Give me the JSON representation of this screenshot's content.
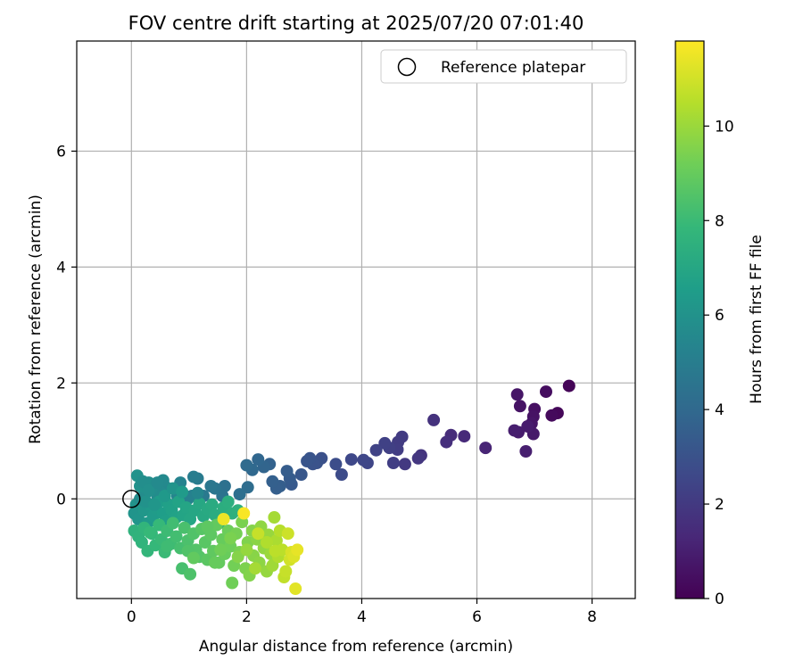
{
  "chart_data": {
    "type": "scatter",
    "title": "FOV centre drift starting at 2025/07/20 07:01:40",
    "xlabel": "Angular distance from reference (arcmin)",
    "ylabel": "Rotation from reference (arcmin)",
    "xlim": [
      -0.95,
      8.75
    ],
    "ylim": [
      -1.72,
      7.9
    ],
    "xticks": [
      0,
      2,
      4,
      6,
      8
    ],
    "yticks": [
      0,
      2,
      4,
      6
    ],
    "grid": true,
    "legend": {
      "position": "top-right",
      "entries": [
        "Reference platepar"
      ]
    },
    "reference_point": {
      "x": 0,
      "y": 0,
      "label": "Reference platepar"
    },
    "colorbar": {
      "label": "Hours from first FF file",
      "range": [
        0,
        11.8
      ],
      "ticks": [
        0,
        2,
        4,
        6,
        8,
        10
      ],
      "colormap": "viridis"
    },
    "colormap_stops": [
      "#440154",
      "#482878",
      "#3e4989",
      "#31688e",
      "#26828e",
      "#1f9e89",
      "#35b779",
      "#6ece58",
      "#b5de2b",
      "#fde725"
    ],
    "series": [
      {
        "color_by": "hours",
        "points": [
          [
            7.6,
            1.95,
            0.1
          ],
          [
            7.4,
            1.48,
            0.2
          ],
          [
            7.3,
            1.44,
            0.3
          ],
          [
            7.2,
            1.85,
            0.4
          ],
          [
            7.0,
            1.55,
            0.5
          ],
          [
            6.98,
            1.42,
            0.6
          ],
          [
            6.95,
            1.3,
            0.7
          ],
          [
            6.98,
            1.12,
            0.8
          ],
          [
            6.88,
            1.25,
            0.9
          ],
          [
            6.85,
            0.82,
            1.0
          ],
          [
            6.75,
            1.6,
            0.6
          ],
          [
            6.7,
            1.8,
            0.7
          ],
          [
            6.72,
            1.15,
            0.9
          ],
          [
            6.65,
            1.18,
            1.0
          ],
          [
            6.15,
            0.88,
            1.2
          ],
          [
            5.78,
            1.08,
            1.4
          ],
          [
            5.55,
            1.1,
            1.5
          ],
          [
            5.47,
            0.98,
            1.6
          ],
          [
            5.25,
            1.36,
            1.7
          ],
          [
            5.03,
            0.75,
            1.8
          ],
          [
            4.98,
            0.7,
            1.9
          ],
          [
            4.75,
            0.6,
            2.0
          ],
          [
            4.7,
            1.07,
            2.05
          ],
          [
            4.63,
            0.98,
            2.1
          ],
          [
            4.62,
            0.85,
            2.15
          ],
          [
            4.55,
            0.62,
            2.2
          ],
          [
            4.48,
            0.88,
            2.25
          ],
          [
            4.4,
            0.96,
            2.3
          ],
          [
            4.25,
            0.84,
            2.4
          ],
          [
            4.1,
            0.62,
            2.5
          ],
          [
            4.03,
            0.67,
            2.55
          ],
          [
            3.82,
            0.68,
            2.6
          ],
          [
            3.65,
            0.42,
            2.7
          ],
          [
            3.55,
            0.6,
            2.8
          ],
          [
            3.3,
            0.7,
            2.9
          ],
          [
            3.22,
            0.62,
            3.0
          ],
          [
            3.15,
            0.6,
            3.05
          ],
          [
            3.1,
            0.7,
            3.1
          ],
          [
            3.05,
            0.65,
            3.15
          ],
          [
            2.95,
            0.42,
            3.2
          ],
          [
            2.78,
            0.25,
            3.3
          ],
          [
            2.75,
            0.35,
            3.4
          ],
          [
            2.7,
            0.48,
            3.45
          ],
          [
            2.58,
            0.22,
            3.5
          ],
          [
            2.52,
            0.18,
            3.55
          ],
          [
            2.45,
            0.3,
            3.6
          ],
          [
            2.4,
            0.6,
            3.7
          ],
          [
            2.3,
            0.55,
            3.8
          ],
          [
            2.2,
            0.68,
            3.9
          ],
          [
            2.1,
            0.5,
            4.0
          ],
          [
            2.0,
            0.58,
            4.1
          ],
          [
            2.02,
            0.2,
            4.2
          ],
          [
            1.88,
            0.08,
            4.3
          ],
          [
            1.62,
            0.22,
            4.4
          ],
          [
            1.58,
            0.05,
            4.5
          ],
          [
            1.45,
            0.18,
            4.6
          ],
          [
            1.38,
            0.22,
            4.7
          ],
          [
            1.25,
            0.05,
            4.8
          ],
          [
            1.15,
            0.35,
            4.9
          ],
          [
            1.08,
            0.38,
            5.0
          ],
          [
            1.05,
            0.05,
            5.1
          ],
          [
            0.98,
            0.0,
            5.2
          ],
          [
            0.85,
            0.28,
            5.3
          ],
          [
            0.8,
            0.05,
            5.4
          ],
          [
            0.6,
            0.2,
            5.5
          ],
          [
            0.55,
            0.32,
            5.55
          ],
          [
            0.5,
            0.12,
            5.6
          ],
          [
            0.45,
            0.05,
            5.65
          ],
          [
            0.4,
            0.25,
            5.7
          ],
          [
            0.35,
            0.15,
            5.75
          ],
          [
            0.3,
            0.28,
            5.8
          ],
          [
            0.25,
            0.1,
            5.85
          ],
          [
            0.2,
            0.05,
            5.9
          ],
          [
            0.15,
            0.22,
            5.95
          ],
          [
            0.1,
            0.4,
            6.0
          ],
          [
            0.08,
            -0.1,
            6.05
          ],
          [
            0.05,
            -0.25,
            6.1
          ],
          [
            0.12,
            -0.35,
            6.15
          ],
          [
            0.18,
            -0.05,
            6.2
          ],
          [
            0.22,
            -0.2,
            6.25
          ],
          [
            0.28,
            -0.42,
            6.3
          ],
          [
            0.32,
            -0.1,
            6.35
          ],
          [
            0.38,
            -0.3,
            6.4
          ],
          [
            0.42,
            -0.15,
            6.45
          ],
          [
            0.48,
            -0.05,
            6.5
          ],
          [
            0.55,
            -0.25,
            6.55
          ],
          [
            0.6,
            -0.38,
            6.6
          ],
          [
            0.65,
            -0.1,
            6.65
          ],
          [
            0.7,
            -0.2,
            6.7
          ],
          [
            0.78,
            -0.32,
            6.75
          ],
          [
            0.82,
            -0.05,
            6.8
          ],
          [
            0.9,
            -0.28,
            6.85
          ],
          [
            0.95,
            -0.15,
            6.9
          ],
          [
            1.02,
            -0.35,
            6.95
          ],
          [
            1.1,
            -0.2,
            7.0
          ],
          [
            1.18,
            -0.08,
            7.05
          ],
          [
            1.25,
            -0.3,
            7.1
          ],
          [
            1.32,
            -0.18,
            7.15
          ],
          [
            1.4,
            -0.1,
            7.2
          ],
          [
            1.45,
            -0.28,
            7.25
          ],
          [
            1.52,
            -0.42,
            7.3
          ],
          [
            1.6,
            -0.15,
            7.35
          ],
          [
            1.68,
            -0.05,
            7.4
          ],
          [
            1.75,
            -0.25,
            7.45
          ],
          [
            1.85,
            -0.2,
            7.5
          ],
          [
            0.05,
            -0.55,
            7.55
          ],
          [
            0.12,
            -0.65,
            7.6
          ],
          [
            0.18,
            -0.75,
            7.65
          ],
          [
            0.22,
            -0.5,
            7.7
          ],
          [
            0.28,
            -0.9,
            7.75
          ],
          [
            0.35,
            -0.6,
            7.8
          ],
          [
            0.42,
            -0.8,
            7.85
          ],
          [
            0.48,
            -0.45,
            7.9
          ],
          [
            0.52,
            -0.7,
            7.95
          ],
          [
            0.58,
            -0.92,
            8.0
          ],
          [
            0.62,
            -0.55,
            8.05
          ],
          [
            0.68,
            -0.78,
            8.1
          ],
          [
            0.72,
            -0.42,
            8.15
          ],
          [
            0.78,
            -0.65,
            8.2
          ],
          [
            0.85,
            -0.85,
            8.25
          ],
          [
            0.88,
            -1.2,
            8.3
          ],
          [
            0.92,
            -0.5,
            8.35
          ],
          [
            0.98,
            -0.72,
            8.4
          ],
          [
            1.02,
            -1.3,
            8.45
          ],
          [
            1.08,
            -0.6,
            8.5
          ],
          [
            1.12,
            -0.88,
            8.55
          ],
          [
            1.18,
            -1.0,
            8.6
          ],
          [
            1.22,
            -0.52,
            8.65
          ],
          [
            1.28,
            -0.75,
            8.7
          ],
          [
            1.32,
            -1.05,
            8.75
          ],
          [
            1.38,
            -0.62,
            8.8
          ],
          [
            1.42,
            -0.9,
            8.85
          ],
          [
            1.48,
            -0.45,
            8.9
          ],
          [
            1.52,
            -1.1,
            8.95
          ],
          [
            1.58,
            -0.7,
            9.0
          ],
          [
            1.62,
            -0.95,
            9.05
          ],
          [
            1.68,
            -0.55,
            9.1
          ],
          [
            1.72,
            -0.82,
            9.15
          ],
          [
            1.75,
            -1.45,
            9.2
          ],
          [
            1.78,
            -1.15,
            9.25
          ],
          [
            1.82,
            -0.6,
            9.3
          ],
          [
            1.88,
            -0.92,
            9.35
          ],
          [
            1.92,
            -0.4,
            9.4
          ],
          [
            1.98,
            -1.2,
            9.45
          ],
          [
            2.02,
            -0.75,
            9.5
          ],
          [
            2.05,
            -1.32,
            9.55
          ],
          [
            2.1,
            -0.55,
            9.6
          ],
          [
            2.12,
            -0.98,
            9.65
          ],
          [
            2.18,
            -0.7,
            9.7
          ],
          [
            2.22,
            -1.1,
            9.75
          ],
          [
            2.25,
            -0.48,
            9.8
          ],
          [
            2.3,
            -0.85,
            9.85
          ],
          [
            2.35,
            -1.25,
            9.9
          ],
          [
            2.38,
            -0.62,
            9.95
          ],
          [
            2.42,
            -0.95,
            10.0
          ],
          [
            2.45,
            -1.15,
            10.1
          ],
          [
            2.48,
            -0.32,
            10.2
          ],
          [
            2.52,
            -0.72,
            10.3
          ],
          [
            2.55,
            -1.0,
            10.4
          ],
          [
            2.58,
            -0.55,
            10.5
          ],
          [
            2.62,
            -0.88,
            10.6
          ],
          [
            2.65,
            -1.35,
            10.7
          ],
          [
            2.68,
            -1.25,
            10.8
          ],
          [
            2.72,
            -0.6,
            10.9
          ],
          [
            2.75,
            -1.05,
            11.0
          ],
          [
            2.78,
            -0.92,
            11.1
          ],
          [
            2.82,
            -1.0,
            11.2
          ],
          [
            2.85,
            -1.55,
            11.3
          ],
          [
            2.88,
            -0.88,
            11.4
          ],
          [
            1.6,
            -0.35,
            11.5
          ],
          [
            1.95,
            -0.25,
            11.7
          ],
          [
            0.15,
            0.0,
            5.7
          ],
          [
            0.2,
            0.3,
            5.8
          ],
          [
            0.25,
            -0.05,
            6.0
          ],
          [
            0.3,
            0.15,
            5.9
          ],
          [
            0.4,
            -0.1,
            6.2
          ],
          [
            0.45,
            0.28,
            5.6
          ],
          [
            0.58,
            0.05,
            6.3
          ],
          [
            0.72,
            0.18,
            6.1
          ],
          [
            0.88,
            0.12,
            6.4
          ],
          [
            1.15,
            0.1,
            5.4
          ],
          [
            0.32,
            -0.58,
            7.9
          ],
          [
            0.62,
            -0.82,
            8.1
          ],
          [
            0.98,
            -0.9,
            8.5
          ],
          [
            1.32,
            -0.48,
            8.8
          ],
          [
            1.08,
            -1.02,
            8.9
          ],
          [
            1.55,
            -0.88,
            9.2
          ],
          [
            1.85,
            -1.0,
            9.6
          ],
          [
            2.0,
            -0.88,
            9.9
          ],
          [
            2.15,
            -1.2,
            10.2
          ],
          [
            2.35,
            -0.75,
            10.4
          ],
          [
            2.5,
            -0.9,
            10.6
          ],
          [
            2.2,
            -0.6,
            10.8
          ],
          [
            1.72,
            -0.68,
            9.4
          ],
          [
            1.45,
            -1.1,
            9.0
          ]
        ]
      }
    ]
  }
}
